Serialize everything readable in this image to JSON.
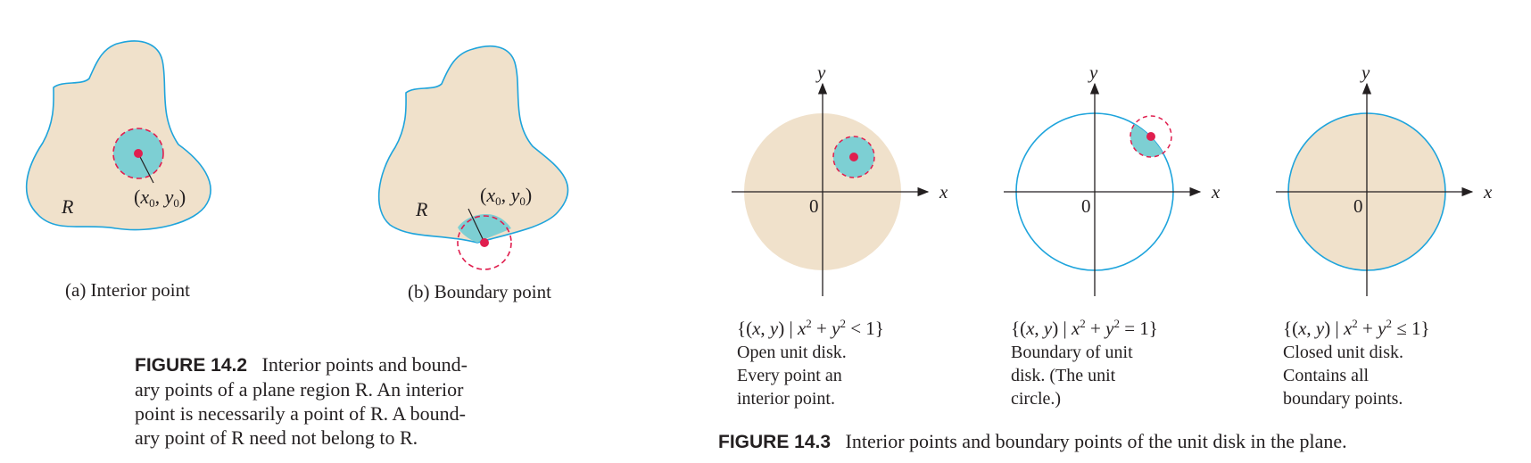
{
  "figure_14_2": {
    "panel_a": {
      "region_label": "R",
      "point_label": "(x0, y0)",
      "caption": "(a) Interior point"
    },
    "panel_b": {
      "region_label": "R",
      "point_label": "(x0, y0)",
      "caption": "(b) Boundary point"
    },
    "caption": {
      "number": "FIGURE 14.2",
      "lines": [
        "Interior points and bound-",
        "ary points of a plane region R. An interior",
        "point is necessarily a point of R. A bound-",
        "ary point of R need not belong to R."
      ]
    }
  },
  "figure_14_3": {
    "axis_labels": {
      "x": "x",
      "y": "y",
      "origin": "0"
    },
    "panels": [
      {
        "set": "{(x, y) | x2 + y2 < 1}",
        "description": [
          "Open unit disk.",
          "Every point an",
          "interior point."
        ]
      },
      {
        "set": "{(x, y) | x2 + y2 = 1}",
        "description": [
          "Boundary of unit",
          "disk. (The unit",
          "circle.)"
        ]
      },
      {
        "set": "{(x, y) | x2 + y2 ≤ 1}",
        "description": [
          "Closed unit disk.",
          "Contains all",
          "boundary points."
        ]
      }
    ],
    "caption": {
      "number": "FIGURE 14.3",
      "text": "Interior points and boundary points of the unit disk in the plane."
    }
  },
  "colors": {
    "region_fill": "#f0e1cb",
    "boundary": "#1ea4dc",
    "neighborhood": "#7dcfd3",
    "point": "#e01f4f",
    "axis": "#231f20"
  }
}
